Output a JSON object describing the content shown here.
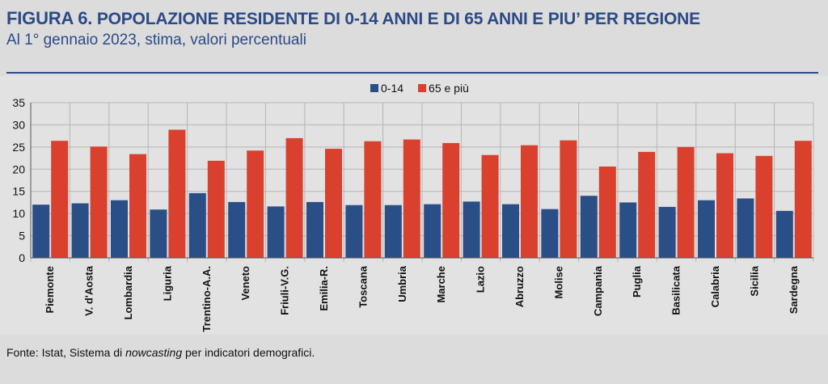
{
  "header": {
    "figure_label": "FIGURA 6.",
    "title": "POPOLAZIONE RESIDENTE DI 0-14 ANNI E DI 65 ANNI E PIU’ PER REGIONE",
    "subtitle": "Al 1° gennaio 2023, stima, valori percentuali"
  },
  "footer": {
    "source_prefix": "Fonte: Istat, Sistema di",
    "source_italic": "nowcasting",
    "source_suffix": "per indicatori demografici."
  },
  "chart_data": {
    "type": "bar",
    "title": "",
    "xlabel": "",
    "ylabel": "",
    "ylim": [
      0,
      35
    ],
    "yticks": [
      0,
      5,
      10,
      15,
      20,
      25,
      30,
      35
    ],
    "grid": true,
    "legend_position": "top-center",
    "categories": [
      "Piemonte",
      "V. d'Aosta",
      "Lombardia",
      "Liguria",
      "Trentino-A.A.",
      "Veneto",
      "Friuli-V.G.",
      "Emilia-R.",
      "Toscana",
      "Umbria",
      "Marche",
      "Lazio",
      "Abruzzo",
      "Molise",
      "Campania",
      "Puglia",
      "Basilicata",
      "Calabria",
      "Sicilia",
      "Sardegna"
    ],
    "series": [
      {
        "name": "0-14",
        "color": "#2a4e86",
        "values": [
          12.0,
          12.3,
          13.0,
          10.9,
          14.6,
          12.6,
          11.6,
          12.6,
          11.9,
          11.9,
          12.1,
          12.7,
          12.1,
          11.0,
          14.0,
          12.5,
          11.5,
          13.0,
          13.4,
          10.6
        ]
      },
      {
        "name": "65 e più",
        "color": "#d9412e",
        "values": [
          26.4,
          25.1,
          23.4,
          28.9,
          21.9,
          24.2,
          27.0,
          24.6,
          26.3,
          26.7,
          25.9,
          23.2,
          25.4,
          26.5,
          20.6,
          23.9,
          25.0,
          23.6,
          23.0,
          26.4
        ]
      }
    ]
  }
}
